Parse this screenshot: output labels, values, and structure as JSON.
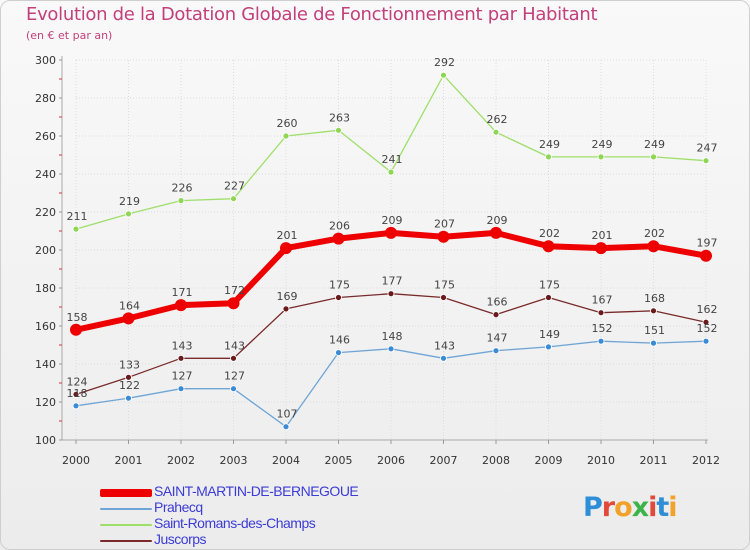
{
  "title": "Evolution de la Dotation Globale de Fonctionnement par Habitant",
  "subtitle": "(en € et par an)",
  "logo_text": "Proxiti",
  "chart_data": {
    "type": "line",
    "title": "Evolution de la Dotation Globale de Fonctionnement par Habitant",
    "subtitle": "(en € et par an)",
    "xlabel": "",
    "ylabel": "",
    "x": [
      "2000",
      "2001",
      "2002",
      "2003",
      "2004",
      "2005",
      "2006",
      "2007",
      "2008",
      "2009",
      "2010",
      "2011",
      "2012"
    ],
    "ylim": [
      100,
      300
    ],
    "yticks": [
      100,
      120,
      140,
      160,
      180,
      200,
      220,
      240,
      260,
      280,
      300
    ],
    "grid": true,
    "legend_position": "bottom-left",
    "series": [
      {
        "name": "SAINT-MARTIN-DE-BERNEGOUE",
        "color": "#ee0000",
        "marker": "#ee0000",
        "width": 6,
        "values": [
          158,
          164,
          171,
          172,
          201,
          206,
          209,
          207,
          209,
          202,
          201,
          202,
          197
        ]
      },
      {
        "name": "Prahecq",
        "color": "#6fa5d6",
        "marker": "#3a8ad6",
        "width": 1.3,
        "values": [
          118,
          122,
          127,
          127,
          107,
          146,
          148,
          143,
          147,
          149,
          152,
          151,
          152
        ]
      },
      {
        "name": "Saint-Romans-des-Champs",
        "color": "#9edf6a",
        "marker": "#8fd655",
        "width": 1.3,
        "values": [
          211,
          219,
          226,
          227,
          260,
          263,
          241,
          292,
          262,
          249,
          249,
          249,
          247
        ]
      },
      {
        "name": "Juscorps",
        "color": "#7a2a2a",
        "marker": "#6a1a1a",
        "width": 1.3,
        "values": [
          124,
          133,
          143,
          143,
          169,
          175,
          177,
          175,
          166,
          175,
          167,
          168,
          162
        ]
      }
    ]
  }
}
